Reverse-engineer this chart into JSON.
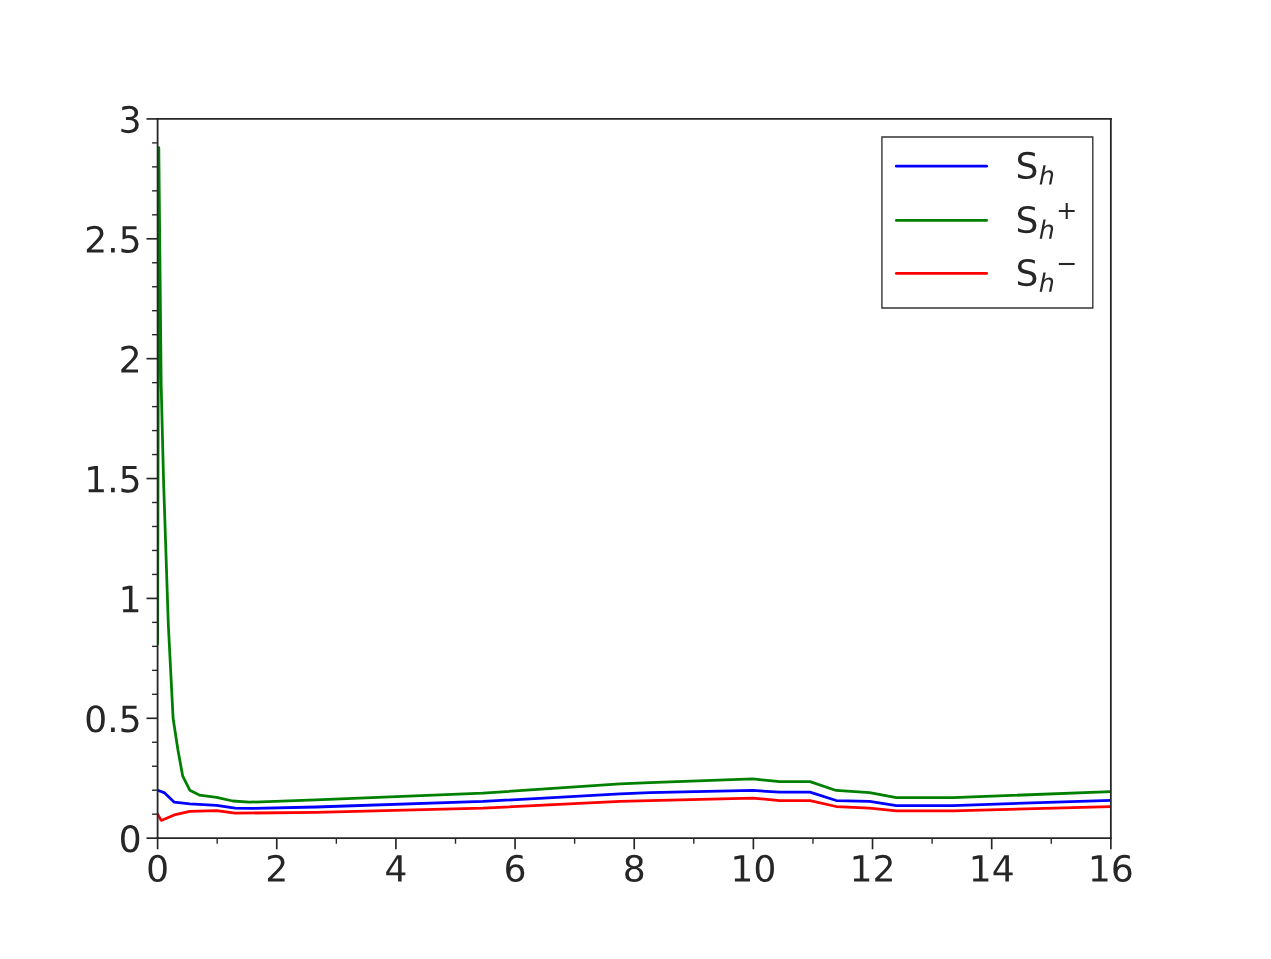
{
  "chart_data": {
    "type": "line",
    "xlim": [
      0,
      16
    ],
    "ylim": [
      0,
      3
    ],
    "xticks": [
      0,
      {
        "value": 1,
        "label": null
      },
      2,
      {
        "value": 3,
        "label": null
      },
      4,
      {
        "value": 5,
        "label": null
      },
      6,
      {
        "value": 7,
        "label": null
      },
      8,
      {
        "value": 9,
        "label": null
      },
      10,
      {
        "value": 11,
        "label": null
      },
      12,
      {
        "value": 13,
        "label": null
      },
      14,
      {
        "value": 15,
        "label": null
      },
      16
    ],
    "yticks": [
      0,
      {
        "value": 0.1,
        "label": null
      },
      {
        "value": 0.2,
        "label": null
      },
      {
        "value": 0.3,
        "label": null
      },
      {
        "value": 0.4,
        "label": null
      },
      0.5,
      {
        "value": 0.6,
        "label": null
      },
      {
        "value": 0.7,
        "label": null
      },
      {
        "value": 0.8,
        "label": null
      },
      {
        "value": 0.9,
        "label": null
      },
      1,
      {
        "value": 1.1,
        "label": null
      },
      {
        "value": 1.2,
        "label": null
      },
      {
        "value": 1.3,
        "label": null
      },
      {
        "value": 1.4,
        "label": null
      },
      1.5,
      {
        "value": 1.6,
        "label": null
      },
      {
        "value": 1.7,
        "label": null
      },
      {
        "value": 1.8,
        "label": null
      },
      {
        "value": 1.9,
        "label": null
      },
      2,
      {
        "value": 2.1,
        "label": null
      },
      {
        "value": 2.2,
        "label": null
      },
      {
        "value": 2.3,
        "label": null
      },
      {
        "value": 2.4,
        "label": null
      },
      2.5,
      {
        "value": 2.6,
        "label": null
      },
      {
        "value": 2.7,
        "label": null
      },
      {
        "value": 2.8,
        "label": null
      },
      {
        "value": 2.9,
        "label": null
      },
      3
    ],
    "grid": false,
    "legend": "top right",
    "marker": "none",
    "line_style": "solid",
    "series": [
      {
        "name": "S$_{h}$",
        "color": "#0000ff",
        "x": [
          0,
          0.11,
          0.28,
          0.54,
          0.99,
          1.3,
          1.54,
          2.66,
          5.46,
          7.76,
          8.26,
          9.99,
          10.44,
          10.95,
          11.39,
          11.95,
          12.4,
          13.35,
          16
        ],
        "values": [
          0.2,
          0.19,
          0.15,
          0.143,
          0.137,
          0.125,
          0.124,
          0.13,
          0.153,
          0.185,
          0.19,
          0.199,
          0.192,
          0.192,
          0.157,
          0.153,
          0.136,
          0.136,
          0.158
        ]
      },
      {
        "name": "S$_{h}$$^{+}$",
        "color": "#008000",
        "x": [
          0,
          0.02,
          0.06,
          0.1,
          0.18,
          0.26,
          0.34,
          0.42,
          0.54,
          0.7,
          0.99,
          1.26,
          1.54,
          2.66,
          5.46,
          7.76,
          8.26,
          9.99,
          10.44,
          10.95,
          11.39,
          11.95,
          12.4,
          13.35,
          16
        ],
        "values": [
          0.81,
          2.88,
          1.89,
          1.49,
          0.89,
          0.5,
          0.37,
          0.26,
          0.2,
          0.18,
          0.17,
          0.155,
          0.15,
          0.16,
          0.188,
          0.226,
          0.232,
          0.247,
          0.236,
          0.236,
          0.199,
          0.19,
          0.169,
          0.169,
          0.194
        ]
      },
      {
        "name": "S$_{h}$$^{−}$",
        "color": "#ff0000",
        "x": [
          0,
          0.06,
          0.28,
          0.54,
          0.99,
          1.3,
          2.66,
          5.46,
          7.76,
          8.26,
          9.99,
          10.44,
          10.95,
          11.39,
          11.95,
          12.4,
          13.35,
          16
        ],
        "values": [
          0.1,
          0.074,
          0.097,
          0.112,
          0.115,
          0.104,
          0.108,
          0.125,
          0.153,
          0.157,
          0.167,
          0.157,
          0.157,
          0.132,
          0.125,
          0.114,
          0.114,
          0.132
        ]
      }
    ]
  }
}
